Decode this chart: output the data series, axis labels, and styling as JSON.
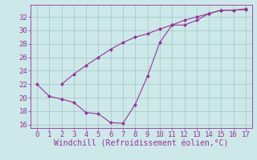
{
  "background_color": "#cce8e8",
  "grid_color": "#aacccc",
  "line_color": "#993399",
  "marker_color": "#993399",
  "xlabel": "Windchill (Refroidissement éolien,°C)",
  "xlabel_fontsize": 7,
  "tick_fontsize": 6.5,
  "xlim": [
    -0.5,
    17.5
  ],
  "ylim": [
    15.5,
    33.8
  ],
  "yticks": [
    16,
    18,
    20,
    22,
    24,
    26,
    28,
    30,
    32
  ],
  "xticks": [
    0,
    1,
    2,
    3,
    4,
    5,
    6,
    7,
    8,
    9,
    10,
    11,
    12,
    13,
    14,
    15,
    16,
    17
  ],
  "upper_x": [
    2,
    3,
    4,
    5,
    6,
    7,
    8,
    9,
    10,
    11,
    12,
    13,
    14,
    15,
    16,
    17
  ],
  "upper_y": [
    22.0,
    23.5,
    24.8,
    26.0,
    27.2,
    28.2,
    29.0,
    29.5,
    30.2,
    30.8,
    31.5,
    32.0,
    32.5,
    33.0,
    33.0,
    33.2
  ],
  "lower_x": [
    0,
    1,
    2,
    3,
    4,
    5,
    6,
    7,
    8,
    9,
    10,
    11,
    12,
    13,
    14,
    15,
    16,
    17
  ],
  "lower_y": [
    22.0,
    20.2,
    19.8,
    19.3,
    17.8,
    17.6,
    16.3,
    16.2,
    19.0,
    23.2,
    28.2,
    30.8,
    30.8,
    31.5,
    32.5,
    33.0,
    33.0,
    33.1
  ]
}
